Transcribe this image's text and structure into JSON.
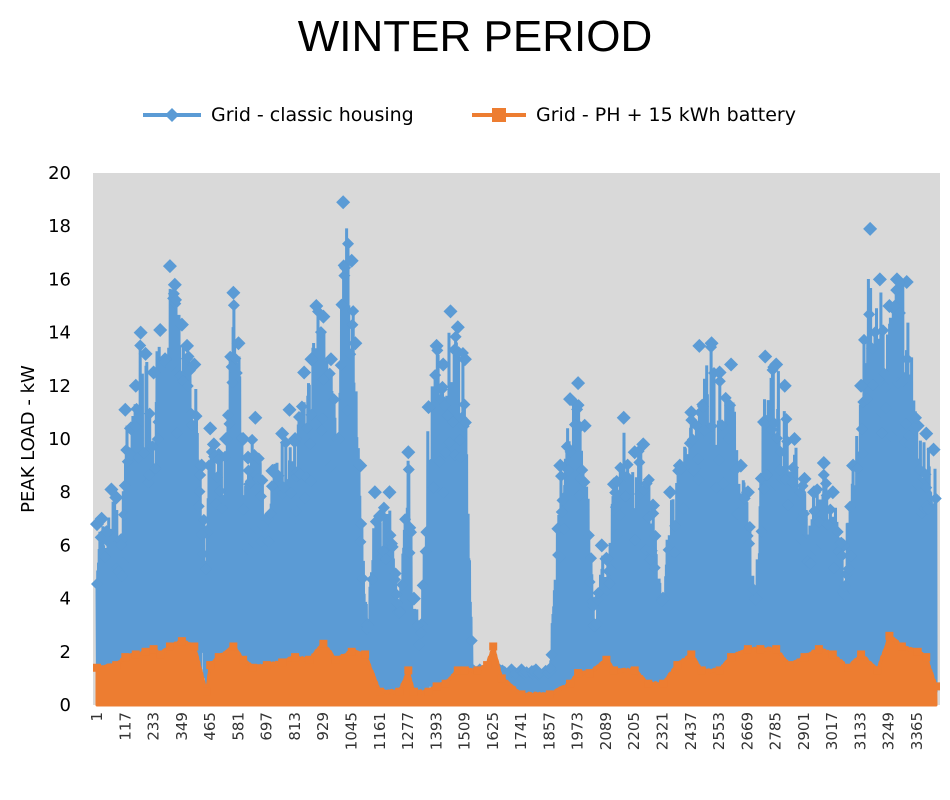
{
  "chart_data": {
    "type": "line",
    "title": "WINTER PERIOD",
    "xlabel": "",
    "ylabel": "PEAK LOAD - kW",
    "ylim": [
      0,
      20
    ],
    "yticks": [
      "0",
      "2",
      "4",
      "6",
      "8",
      "10",
      "12",
      "14",
      "16",
      "18",
      "20"
    ],
    "xlim": [
      1,
      3440
    ],
    "xticks": [
      "1",
      "117",
      "233",
      "349",
      "465",
      "581",
      "697",
      "813",
      "929",
      "1045",
      "1161",
      "1277",
      "1393",
      "1509",
      "1625",
      "1741",
      "1857",
      "1973",
      "2089",
      "2205",
      "2321",
      "2437",
      "2553",
      "2669",
      "2785",
      "2901",
      "3017",
      "3133",
      "3249",
      "3365"
    ],
    "grid": false,
    "legend_position": "top",
    "background": "#d9d9d9",
    "series": [
      {
        "name": "Grid - classic housing",
        "color": "#5b9bd5",
        "marker": "diamond",
        "x": [
          1,
          20,
          40,
          60,
          80,
          100,
          117,
          140,
          160,
          180,
          200,
          233,
          260,
          280,
          300,
          320,
          349,
          370,
          400,
          430,
          450,
          465,
          480,
          500,
          530,
          560,
          581,
          600,
          620,
          650,
          697,
          720,
          760,
          790,
          813,
          850,
          880,
          900,
          929,
          960,
          990,
          1010,
          1045,
          1060,
          1080,
          1110,
          1140,
          1161,
          1200,
          1240,
          1277,
          1300,
          1330,
          1360,
          1393,
          1420,
          1450,
          1480,
          1509,
          1540,
          1570,
          1600,
          1625,
          1650,
          1700,
          1741,
          1800,
          1857,
          1900,
          1940,
          1973,
          2000,
          2040,
          2070,
          2089,
          2120,
          2160,
          2205,
          2240,
          2280,
          2321,
          2350,
          2390,
          2437,
          2470,
          2520,
          2553,
          2600,
          2640,
          2669,
          2700,
          2740,
          2785,
          2820,
          2860,
          2901,
          2940,
          2980,
          3017,
          3060,
          3100,
          3133,
          3170,
          3210,
          3249,
          3280,
          3320,
          3365,
          3400,
          3430
        ],
        "peak": [
          6.8,
          7.0,
          6.5,
          8.1,
          7.8,
          6.2,
          11.1,
          10.4,
          12.0,
          14.0,
          13.2,
          12.5,
          14.1,
          13.0,
          16.5,
          15.8,
          14.3,
          13.5,
          12.8,
          9.0,
          6.5,
          10.4,
          9.8,
          9.4,
          10.0,
          15.5,
          13.6,
          10.0,
          9.3,
          10.8,
          7.0,
          8.8,
          10.2,
          11.1,
          10.0,
          12.5,
          13.0,
          15.0,
          14.6,
          13.0,
          10.0,
          18.9,
          16.7,
          13.6,
          9.0,
          3.0,
          8.0,
          7.1,
          8.0,
          3.5,
          9.5,
          4.0,
          3.0,
          11.2,
          13.5,
          12.8,
          14.8,
          14.2,
          13.0,
          1.3,
          1.3,
          1.3,
          1.3,
          1.3,
          1.3,
          1.3,
          1.3,
          1.3,
          9.0,
          11.5,
          12.1,
          10.5,
          3.0,
          6.0,
          5.5,
          8.3,
          10.8,
          9.5,
          9.8,
          7.5,
          4.0,
          8.0,
          9.0,
          11.0,
          13.5,
          13.6,
          12.5,
          12.8,
          9.0,
          8.0,
          4.0,
          13.1,
          12.8,
          12.0,
          10.0,
          8.5,
          8.0,
          9.1,
          8.0,
          6.0,
          9.0,
          12.0,
          17.9,
          16.0,
          15.0,
          16.0,
          15.9,
          10.5,
          10.2,
          9.6
        ],
        "base": [
          1.8,
          2.0,
          3.5,
          2.5,
          2.0,
          2.0,
          2.5,
          2.2,
          3.0,
          2.0,
          2.5,
          2.0,
          2.2,
          3.0,
          2.0,
          2.5,
          2.2,
          2.0,
          2.5,
          3.0,
          1.2,
          2.0,
          2.5,
          2.0,
          1.8,
          2.2,
          2.0,
          1.5,
          1.2,
          1.5,
          2.0,
          1.8,
          2.2,
          1.5,
          2.0,
          1.8,
          2.0,
          2.2,
          2.5,
          2.0,
          1.8,
          2.0,
          2.5,
          2.0,
          1.8,
          0.8,
          1.5,
          1.0,
          1.2,
          1.0,
          1.0,
          0.8,
          1.0,
          1.2,
          1.5,
          1.8,
          2.0,
          1.8,
          1.5,
          0.9,
          0.9,
          0.9,
          0.9,
          0.9,
          0.9,
          0.9,
          0.9,
          0.9,
          1.2,
          1.5,
          1.5,
          1.4,
          1.2,
          1.3,
          1.2,
          1.5,
          1.8,
          1.5,
          1.5,
          1.5,
          1.2,
          1.8,
          2.0,
          1.8,
          2.2,
          2.0,
          1.8,
          2.0,
          1.8,
          1.5,
          1.5,
          2.0,
          2.2,
          2.0,
          1.8,
          1.8,
          1.5,
          1.8,
          1.5,
          1.5,
          2.0,
          2.5,
          2.8,
          2.5,
          2.5,
          2.2,
          2.0,
          1.8,
          1.8,
          1.0
        ]
      },
      {
        "name": "Grid - PH + 15 kWh battery",
        "color": "#ed7d31",
        "marker": "square",
        "x": [
          1,
          80,
          117,
          160,
          200,
          233,
          260,
          300,
          349,
          400,
          450,
          465,
          500,
          560,
          600,
          640,
          697,
          760,
          813,
          870,
          929,
          980,
          1045,
          1100,
          1161,
          1240,
          1277,
          1300,
          1360,
          1393,
          1430,
          1480,
          1509,
          1560,
          1600,
          1625,
          1660,
          1741,
          1857,
          1940,
          1973,
          2020,
          2089,
          2120,
          2205,
          2260,
          2321,
          2380,
          2437,
          2480,
          2553,
          2600,
          2669,
          2720,
          2785,
          2840,
          2901,
          2960,
          3017,
          3080,
          3133,
          3200,
          3249,
          3300,
          3365,
          3400,
          3440
        ],
        "peak": [
          1.4,
          1.5,
          1.8,
          1.9,
          2.0,
          2.1,
          1.9,
          2.2,
          2.4,
          2.2,
          0.5,
          1.5,
          1.8,
          2.2,
          1.7,
          1.4,
          1.5,
          1.6,
          1.8,
          1.7,
          2.3,
          1.7,
          2.0,
          1.9,
          0.5,
          0.5,
          1.3,
          0.5,
          0.5,
          0.7,
          0.8,
          1.3,
          1.3,
          1.3,
          1.5,
          2.2,
          1.0,
          0.4,
          0.4,
          0.8,
          1.2,
          1.2,
          1.7,
          1.3,
          1.3,
          0.8,
          0.8,
          1.5,
          1.9,
          1.3,
          1.3,
          1.8,
          2.1,
          2.1,
          2.1,
          1.5,
          1.8,
          2.1,
          1.9,
          1.4,
          1.9,
          1.3,
          2.6,
          2.2,
          2.0,
          1.8,
          0.7
        ]
      }
    ]
  }
}
